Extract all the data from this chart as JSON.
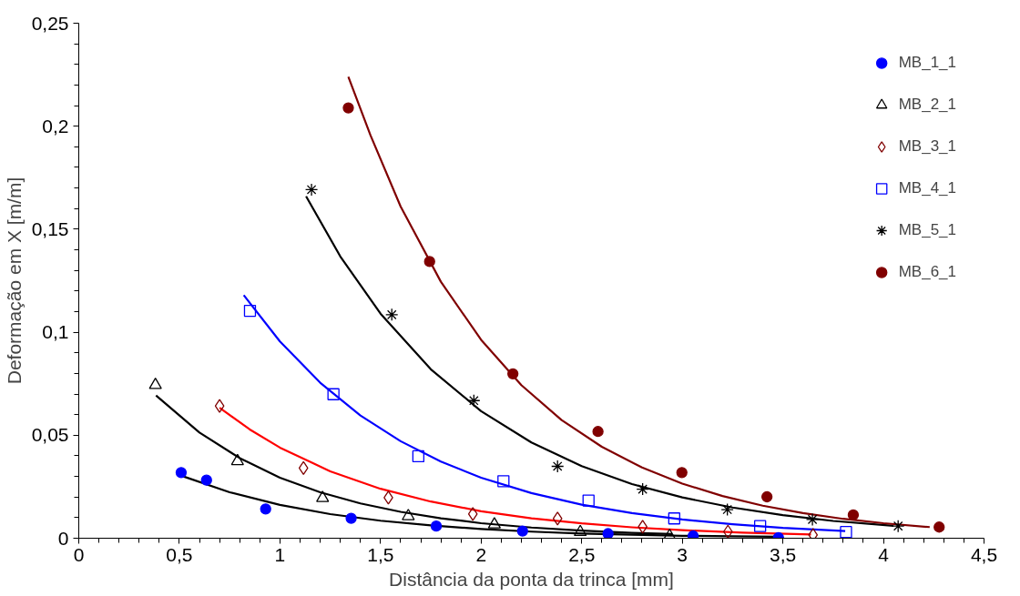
{
  "chart_data": {
    "type": "scatter",
    "xlabel": "Distância da ponta da trinca [mm]",
    "ylabel": "Deformação em X [m/m]",
    "xlim": [
      0,
      4.5
    ],
    "ylim": [
      0,
      0.25
    ],
    "xticks": [
      0,
      {
        "value": 0.5,
        "label": "0,5"
      },
      1,
      {
        "value": 1.5,
        "label": "1,5"
      },
      2,
      {
        "value": 2.5,
        "label": "2,5"
      },
      3,
      {
        "value": 3.5,
        "label": "3,5"
      },
      4,
      {
        "value": 4.5,
        "label": "4,5"
      }
    ],
    "yticks": [
      0,
      {
        "value": 0.05,
        "label": "0,05"
      },
      {
        "value": 0.1,
        "label": "0,1"
      },
      {
        "value": 0.15,
        "label": "0,15"
      },
      {
        "value": 0.2,
        "label": "0,2"
      },
      {
        "value": 0.25,
        "label": "0,25"
      }
    ],
    "grid": false,
    "legend": "top right",
    "series": [
      {
        "name": "MB_1_1",
        "color": "#0000ff",
        "marker": "circle",
        "x": [
          0.509,
          0.635,
          0.929,
          1.354,
          1.777,
          2.206,
          2.631,
          3.054,
          3.478
        ],
        "values": [
          0.0319,
          0.0282,
          0.0142,
          0.0097,
          0.0059,
          0.0035,
          0.0022,
          0.0011,
          0.0003
        ]
      },
      {
        "name": "MB_2_1",
        "color": "#000000",
        "marker": "triangle",
        "x": [
          0.381,
          0.789,
          1.212,
          1.638,
          2.066,
          2.493,
          2.937
        ],
        "values": [
          0.0744,
          0.0374,
          0.0195,
          0.0107,
          0.0067,
          0.003,
          0.0011
        ]
      },
      {
        "name": "MB_3_1",
        "color": "#800000",
        "marker": "diamond",
        "x": [
          0.7,
          1.117,
          1.539,
          1.959,
          2.38,
          2.803,
          3.227,
          3.65
        ],
        "values": [
          0.0642,
          0.0341,
          0.0197,
          0.0118,
          0.0096,
          0.0056,
          0.0032,
          0.0016
        ]
      },
      {
        "name": "MB_4_1",
        "color": "#0000ff",
        "marker": "square",
        "x": [
          0.851,
          1.266,
          1.688,
          2.111,
          2.534,
          2.96,
          3.387,
          3.814
        ],
        "values": [
          0.1104,
          0.0699,
          0.0398,
          0.0277,
          0.0183,
          0.0096,
          0.0059,
          0.003
        ]
      },
      {
        "name": "MB_5_1",
        "color": "#000000",
        "marker": "cross",
        "x": [
          1.157,
          1.556,
          1.964,
          2.38,
          2.803,
          3.224,
          3.647,
          4.073
        ],
        "values": [
          0.1692,
          0.1085,
          0.0668,
          0.0349,
          0.0238,
          0.0139,
          0.0091,
          0.0059
        ]
      },
      {
        "name": "MB_6_1",
        "color": "#800000",
        "marker": "circle",
        "x": [
          1.34,
          1.744,
          2.158,
          2.581,
          2.998,
          3.421,
          3.85,
          4.277
        ],
        "values": [
          0.2089,
          0.1343,
          0.0798,
          0.0518,
          0.0319,
          0.0201,
          0.0113,
          0.0054
        ]
      },
      {
        "type": "line",
        "color": "#000000",
        "x": [
          0.517,
          0.75,
          1.0,
          1.25,
          1.5,
          1.75,
          2.0,
          2.25,
          2.5,
          2.75,
          3.0,
          3.25,
          3.48
        ],
        "values": [
          0.0301,
          0.0223,
          0.0162,
          0.0117,
          0.0085,
          0.0062,
          0.0045,
          0.0032,
          0.0023,
          0.0017,
          0.0012,
          0.0009,
          0.0007
        ]
      },
      {
        "type": "line",
        "color": "#000000",
        "x": [
          0.384,
          0.6,
          0.8,
          1.0,
          1.2,
          1.4,
          1.6,
          1.8,
          2.0,
          2.25,
          2.5,
          2.75,
          2.95
        ],
        "values": [
          0.0693,
          0.0513,
          0.0389,
          0.0294,
          0.0223,
          0.0169,
          0.0128,
          0.0097,
          0.0073,
          0.0052,
          0.0037,
          0.0026,
          0.002
        ]
      },
      {
        "type": "line",
        "color": "#ff0000",
        "x": [
          0.7,
          0.85,
          1.0,
          1.25,
          1.5,
          1.75,
          2.0,
          2.25,
          2.5,
          2.75,
          3.0,
          3.3,
          3.64
        ],
        "values": [
          0.0633,
          0.0528,
          0.044,
          0.0325,
          0.024,
          0.0178,
          0.0131,
          0.0097,
          0.0072,
          0.0053,
          0.0039,
          0.0027,
          0.0018
        ]
      },
      {
        "type": "line",
        "color": "#0000ff",
        "x": [
          0.82,
          1.0,
          1.2,
          1.4,
          1.6,
          1.8,
          2.0,
          2.25,
          2.5,
          2.75,
          3.0,
          3.25,
          3.5,
          3.81
        ],
        "values": [
          0.118,
          0.0955,
          0.0755,
          0.0596,
          0.0471,
          0.0372,
          0.0294,
          0.0219,
          0.0163,
          0.0122,
          0.0091,
          0.0068,
          0.005,
          0.0035
        ]
      },
      {
        "type": "line",
        "color": "#000000",
        "x": [
          1.13,
          1.3,
          1.5,
          1.75,
          2.0,
          2.25,
          2.5,
          2.75,
          3.0,
          3.25,
          3.5,
          3.75,
          4.05
        ],
        "values": [
          0.166,
          0.1368,
          0.109,
          0.082,
          0.0617,
          0.0465,
          0.035,
          0.0263,
          0.0198,
          0.0149,
          0.0112,
          0.0084,
          0.006
        ]
      },
      {
        "type": "line",
        "color": "#800000",
        "x": [
          1.34,
          1.45,
          1.6,
          1.8,
          2.0,
          2.2,
          2.4,
          2.6,
          2.8,
          3.0,
          3.2,
          3.4,
          3.6,
          3.8,
          4.0,
          4.23
        ],
        "values": [
          0.224,
          0.1956,
          0.161,
          0.1245,
          0.0963,
          0.0743,
          0.0574,
          0.0444,
          0.0343,
          0.0265,
          0.0205,
          0.0158,
          0.0122,
          0.0094,
          0.0073,
          0.0054
        ]
      }
    ]
  }
}
